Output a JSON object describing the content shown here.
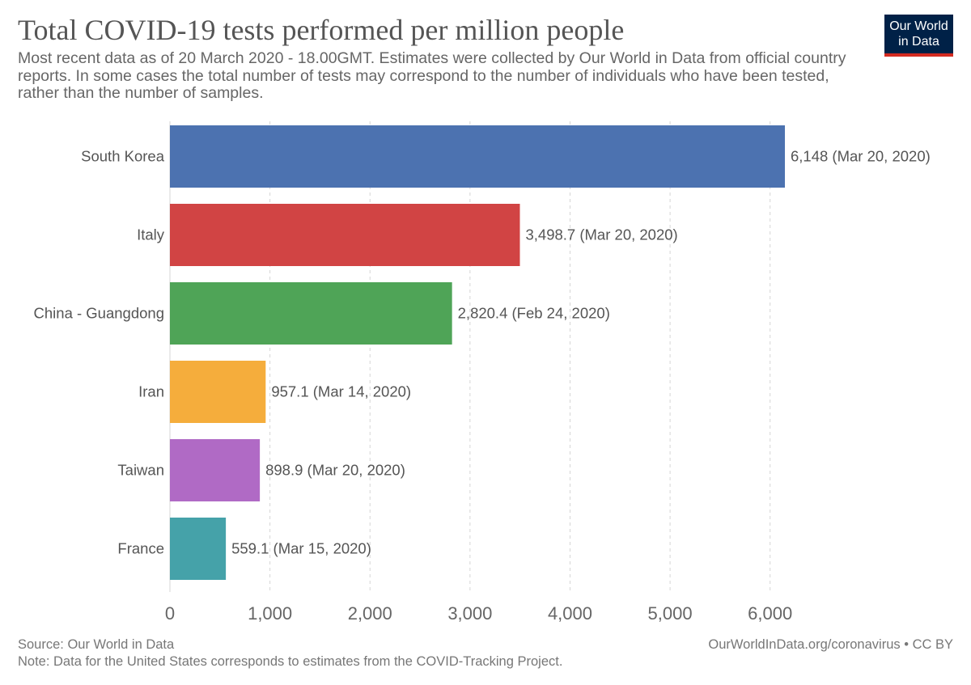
{
  "header": {
    "title": "Total COVID-19 tests performed per million people",
    "subtitle": "Most recent data as of 20 March 2020 - 18.00GMT. Estimates were collected by Our World in Data from official country reports. In some cases the total number of tests may correspond to the number of individuals who have been tested, rather than the number of samples."
  },
  "logo": {
    "line1": "Our World",
    "line2": "in Data",
    "bg_color": "#002147",
    "accent_color": "#d42b21"
  },
  "footer": {
    "source": "Source: Our World in Data",
    "note": "Note: Data for the United States corresponds to estimates from the COVID-Tracking Project.",
    "credit": "OurWorldInData.org/coronavirus • CC BY"
  },
  "chart_data": {
    "type": "bar",
    "orientation": "horizontal",
    "categories": [
      "South Korea",
      "Italy",
      "China - Guangdong",
      "Iran",
      "Taiwan",
      "France"
    ],
    "values": [
      6148,
      3498.7,
      2820.4,
      957.1,
      898.9,
      559.1
    ],
    "value_labels": [
      "6,148 (Mar 20, 2020)",
      "3,498.7 (Mar 20, 2020)",
      "2,820.4 (Feb 24, 2020)",
      "957.1 (Mar 14, 2020)",
      "898.9 (Mar 20, 2020)",
      "559.1 (Mar 15, 2020)"
    ],
    "colors": [
      "#4c72b0",
      "#d14444",
      "#4fa457",
      "#f5ad3c",
      "#b06ac5",
      "#45a2a9"
    ],
    "xticks": [
      0,
      1000,
      2000,
      3000,
      4000,
      5000,
      6000
    ],
    "xtick_labels": [
      "0",
      "1,000",
      "2,000",
      "3,000",
      "4,000",
      "5,000",
      "6,000"
    ],
    "xlim": [
      0,
      6148
    ],
    "grid": true
  }
}
